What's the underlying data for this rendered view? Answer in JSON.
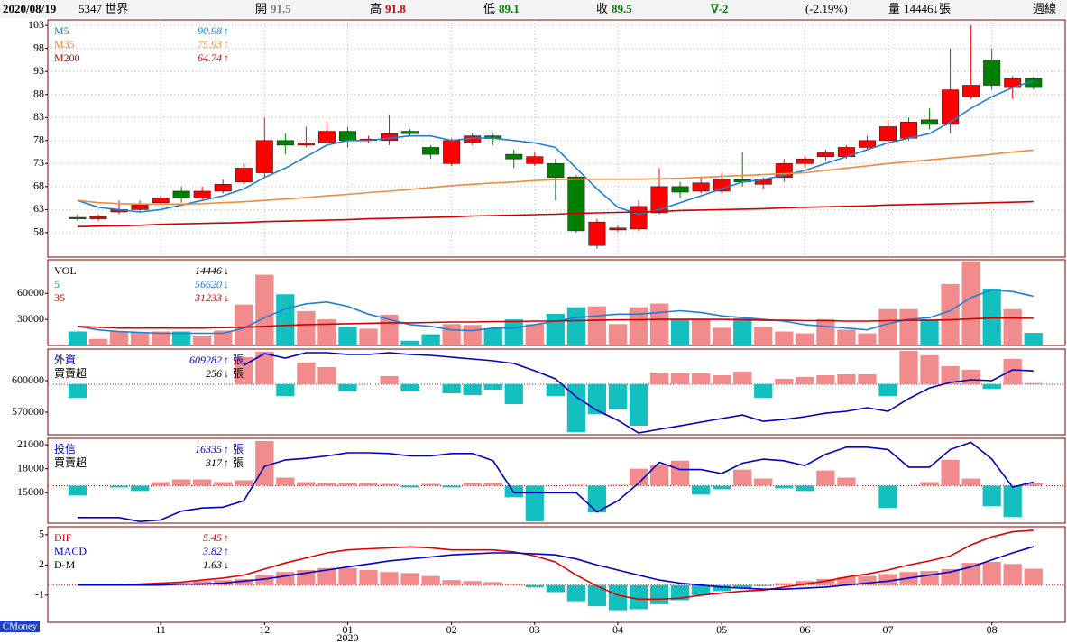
{
  "header": {
    "date": "2020/08/19",
    "stock": "5347 世界",
    "items": [
      {
        "label": "開",
        "value": 91.5,
        "color": "#808080"
      },
      {
        "label": "高",
        "value": 91.8,
        "color": "#e00000"
      },
      {
        "label": "低",
        "value": 89.1,
        "color": "#008000"
      },
      {
        "label": "收",
        "value": 89.5,
        "color": "#008000"
      }
    ],
    "change": "∇-2",
    "change_color": "#008000",
    "change_pct": "(-2.19%)",
    "volume_label": "量",
    "volume": "14446↓張",
    "period": "週線"
  },
  "brand": "CMoney",
  "chart_data": [
    {
      "type": "candlestick",
      "up_color": "#ff0000",
      "down_color": "#008000",
      "grid": true,
      "xlim": [
        -1.43,
        47.53
      ],
      "ylim": [
        52.7,
        104.2
      ],
      "yticks": [
        103,
        98,
        93,
        88,
        83,
        78,
        73,
        68,
        63,
        58
      ],
      "open": [
        61.3,
        61.0,
        62.5,
        63.0,
        64.5,
        67.0,
        65.5,
        67.0,
        69.0,
        71.0,
        78.0,
        77.0,
        77.5,
        80.0,
        78.0,
        78.0,
        80.0,
        76.5,
        73.0,
        77.5,
        79.0,
        75.0,
        73.0,
        73.0,
        70.1,
        55.2,
        58.6,
        58.8,
        62.3,
        68.0,
        67.0,
        67.0,
        69.5,
        68.5,
        70.0,
        73.0,
        74.5,
        74.5,
        76.5,
        78.0,
        78.5,
        82.5,
        81.5,
        87.5,
        95.5,
        89.5,
        91.5
      ],
      "high": [
        62.0,
        62.0,
        65.0,
        65.0,
        66.0,
        68.0,
        68.0,
        69.5,
        73.0,
        83.0,
        79.5,
        81.0,
        82.0,
        81.0,
        79.0,
        83.5,
        80.5,
        77.0,
        78.5,
        79.5,
        79.5,
        76.0,
        75.5,
        74.0,
        70.5,
        61.0,
        59.5,
        65.0,
        72.0,
        69.0,
        70.0,
        71.0,
        75.5,
        70.0,
        74.0,
        75.0,
        76.0,
        77.0,
        79.0,
        82.5,
        83.0,
        85.0,
        98.0,
        103.0,
        98.0,
        92.0,
        91.8
      ],
      "low": [
        60.5,
        60.5,
        62.0,
        62.5,
        64.0,
        64.5,
        65.0,
        66.5,
        68.5,
        70.0,
        75.0,
        76.5,
        77.0,
        76.5,
        77.5,
        77.0,
        79.0,
        74.0,
        72.5,
        77.0,
        77.0,
        72.0,
        72.5,
        65.0,
        58.0,
        54.5,
        58.2,
        58.3,
        62.0,
        65.5,
        66.5,
        66.5,
        68.0,
        67.5,
        69.0,
        72.0,
        73.5,
        74.0,
        76.0,
        77.0,
        78.0,
        80.5,
        79.5,
        87.0,
        89.0,
        87.0,
        89.1
      ],
      "close": [
        61.0,
        61.5,
        63.0,
        64.0,
        65.5,
        65.5,
        67.0,
        68.5,
        72.0,
        78.0,
        77.0,
        77.5,
        80.0,
        78.0,
        78.3,
        79.5,
        79.5,
        75.0,
        78.0,
        79.0,
        78.5,
        74.0,
        74.5,
        70.0,
        58.4,
        60.3,
        59.0,
        63.7,
        68.0,
        66.8,
        68.8,
        69.6,
        69.0,
        69.5,
        73.0,
        74.0,
        75.5,
        76.5,
        78.0,
        81.0,
        82.0,
        81.5,
        89.0,
        90.0,
        90.0,
        91.5,
        89.5
      ],
      "series": [
        {
          "name": "M5",
          "kind": "line",
          "color": "#1e7fd8",
          "trend": "↑",
          "values": [
            65,
            63.5,
            63,
            62.5,
            63,
            64,
            65,
            66,
            67.5,
            70,
            72,
            74.5,
            77,
            78,
            78,
            78.5,
            79,
            79,
            78,
            78.5,
            78.5,
            78,
            77.5,
            76.5,
            72,
            67.5,
            63.5,
            62,
            63,
            64.5,
            66,
            67.5,
            69,
            69.5,
            70.5,
            71.5,
            73,
            74.5,
            76,
            77.5,
            78.5,
            79.5,
            82,
            85,
            87.5,
            89.5,
            90.98
          ]
        },
        {
          "name": "M35",
          "kind": "line",
          "color": "#f08a3c",
          "trend": "↑",
          "values": [
            65,
            64.5,
            64.3,
            64.2,
            64.2,
            64.2,
            64.3,
            64.5,
            64.7,
            65,
            65.3,
            65.6,
            66,
            66.3,
            66.7,
            67,
            67.4,
            67.8,
            68.2,
            68.5,
            68.8,
            69,
            69.3,
            69.5,
            69.6,
            69.6,
            69.6,
            69.6,
            69.7,
            69.8,
            70,
            70.2,
            70.4,
            70.6,
            70.8,
            71,
            71.5,
            72,
            72.5,
            73,
            73.4,
            73.8,
            74.2,
            74.6,
            75,
            75.5,
            75.93
          ]
        },
        {
          "name": "M200",
          "kind": "line",
          "color": "#d00000",
          "trend": "↑",
          "values": [
            59.3,
            59.4,
            59.5,
            59.6,
            59.8,
            59.9,
            60,
            60.1,
            60.2,
            60.4,
            60.5,
            60.6,
            60.7,
            60.8,
            61,
            61.1,
            61.2,
            61.3,
            61.4,
            61.6,
            61.7,
            61.8,
            61.9,
            62,
            62.2,
            62.3,
            62.4,
            62.5,
            62.6,
            62.8,
            62.9,
            63,
            63.1,
            63.2,
            63.4,
            63.5,
            63.6,
            63.7,
            63.8,
            64,
            64.1,
            64.2,
            64.3,
            64.4,
            64.5,
            64.6,
            64.74
          ]
        }
      ]
    },
    {
      "type": "bar",
      "xlim": [
        -1.43,
        47.53
      ],
      "ylim": [
        0,
        98600
      ],
      "yticks": [
        60000,
        30000
      ],
      "series": [
        {
          "name": "VOL",
          "kind": "bar",
          "color": "#000000",
          "color_rule": "candle",
          "up_color": "#f28b8b",
          "down_color": "#14bfbf",
          "trend": "↓",
          "values": [
            16100,
            7500,
            16100,
            15000,
            16100,
            16100,
            10700,
            17100,
            47100,
            81400,
            58900,
            39600,
            30000,
            21400,
            19300,
            35400,
            5400,
            12900,
            24600,
            23600,
            19300,
            30000,
            24600,
            36400,
            43900,
            45000,
            24600,
            43900,
            48200,
            30000,
            30000,
            20400,
            31100,
            21400,
            16100,
            13900,
            30000,
            18200,
            13900,
            41800,
            41800,
            30000,
            70700,
            96400,
            65400,
            41800,
            14446
          ]
        },
        {
          "name": "5",
          "kind": "line",
          "color": "#1e7fd8",
          "trend": "↓",
          "values": [
            22000,
            18000,
            16000,
            15000,
            14000,
            14000,
            14000,
            14000,
            20000,
            32000,
            42000,
            48000,
            50000,
            45000,
            36000,
            30000,
            24000,
            22000,
            18000,
            17000,
            20000,
            20000,
            24000,
            28000,
            32000,
            34000,
            36000,
            36000,
            38000,
            40000,
            38000,
            34000,
            32000,
            30000,
            28000,
            24000,
            22000,
            20000,
            18000,
            25000,
            30000,
            32000,
            40000,
            55000,
            64000,
            62000,
            56620
          ]
        },
        {
          "name": "35",
          "kind": "line",
          "color": "#d00000",
          "trend": "↓",
          "values": [
            22000,
            21000,
            20000,
            20000,
            20000,
            20000,
            20000,
            20500,
            21000,
            22000,
            23000,
            24000,
            24500,
            25000,
            25500,
            26000,
            26000,
            26500,
            27000,
            27000,
            27500,
            27500,
            28000,
            28000,
            28500,
            29000,
            29500,
            29500,
            30000,
            30000,
            30000,
            30000,
            29500,
            29000,
            29000,
            28500,
            28500,
            28000,
            28000,
            28500,
            29000,
            29000,
            29500,
            30500,
            31500,
            31500,
            31233
          ]
        }
      ]
    },
    {
      "type": "bar",
      "zero_line": true,
      "xlim": [
        -1.43,
        47.53
      ],
      "ylim": [
        548600,
        630000
      ],
      "yticks": [
        600000,
        570000
      ],
      "y2lim": [
        -11200,
        7800
      ],
      "series": [
        {
          "name": "外資",
          "kind": "line",
          "color": "#0000c0",
          "trend": "↑",
          "unit": "張",
          "values": [
            null,
            null,
            null,
            null,
            null,
            null,
            null,
            null,
            614600,
            625700,
            621400,
            626600,
            626600,
            624900,
            624900,
            626600,
            624900,
            624000,
            622300,
            620600,
            618900,
            616300,
            609400,
            601700,
            584600,
            571700,
            562300,
            550300,
            553700,
            557100,
            560600,
            564000,
            567400,
            561400,
            563100,
            565700,
            569100,
            570900,
            574300,
            570900,
            582900,
            593100,
            598300,
            600900,
            600000,
            610300,
            609282
          ]
        },
        {
          "name": "買賣超",
          "kind": "bar",
          "axis": "y2",
          "color": "#000000",
          "color_rule": "sign",
          "up_color": "#f28b8b",
          "down_color": "#14bfbf",
          "trend": "↓",
          "unit": "張",
          "values": [
            -3000,
            0,
            0,
            0,
            0,
            0,
            0,
            0,
            6000,
            7200,
            -2600,
            4800,
            3800,
            -1600,
            0,
            1800,
            -1600,
            0,
            -2000,
            -2400,
            -1200,
            -4400,
            0,
            -2600,
            -10600,
            -6600,
            -5600,
            -9200,
            2600,
            2400,
            2400,
            2000,
            2800,
            -3000,
            1200,
            1600,
            2000,
            2200,
            2200,
            -2600,
            7400,
            6400,
            4000,
            3200,
            -1000,
            5600,
            256
          ]
        }
      ]
    },
    {
      "type": "bar",
      "zero_line": true,
      "xlim": [
        -1.43,
        47.53
      ],
      "ylim": [
        11200,
        21800
      ],
      "yticks": [
        21000,
        18000,
        15000
      ],
      "y2lim": [
        -4200,
        5300
      ],
      "series": [
        {
          "name": "投信",
          "kind": "line",
          "color": "#0000c0",
          "trend": "↑",
          "unit": "張",
          "values": [
            11900,
            11900,
            11900,
            11400,
            11600,
            12700,
            13100,
            13200,
            14000,
            18300,
            19100,
            19300,
            19600,
            20000,
            20000,
            19900,
            19600,
            19600,
            19900,
            19900,
            19000,
            15000,
            15000,
            15000,
            15000,
            12600,
            14000,
            16200,
            18800,
            17900,
            17900,
            17400,
            18700,
            19200,
            19000,
            18400,
            19800,
            20700,
            20700,
            20400,
            18200,
            18200,
            20400,
            21300,
            19200,
            15700,
            16335
          ]
        },
        {
          "name": "買賣超",
          "kind": "bar",
          "axis": "y2",
          "color": "#000000",
          "color_rule": "sign",
          "up_color": "#f28b8b",
          "down_color": "#14bfbf",
          "trend": "↑",
          "unit": "張",
          "values": [
            -1100,
            0,
            -200,
            -600,
            400,
            700,
            700,
            400,
            600,
            5000,
            900,
            400,
            300,
            300,
            300,
            200,
            -200,
            200,
            -200,
            300,
            300,
            -1300,
            -4000,
            0,
            100,
            -3000,
            100,
            1900,
            2300,
            2800,
            -1000,
            -400,
            1800,
            800,
            -300,
            -600,
            1700,
            900,
            0,
            -2500,
            0,
            400,
            2900,
            800,
            -2300,
            -3500,
            317
          ]
        }
      ]
    },
    {
      "type": "bar",
      "zero_line": true,
      "xlim": [
        -1.43,
        47.53
      ],
      "ylim": [
        -3.7,
        5.8
      ],
      "yticks": [
        5,
        2,
        -1
      ],
      "xticks": [
        {
          "value": 4,
          "label": "11"
        },
        {
          "value": 9,
          "label": "12"
        },
        {
          "value": 13,
          "label": "01"
        },
        {
          "value": 18,
          "label": "02"
        },
        {
          "value": 22,
          "label": "03"
        },
        {
          "value": 26,
          "label": "04"
        },
        {
          "value": 31,
          "label": "05"
        },
        {
          "value": 35,
          "label": "06"
        },
        {
          "value": 39,
          "label": "07"
        },
        {
          "value": 44,
          "label": "08"
        }
      ],
      "xsublabels": [
        {
          "value": 13,
          "label": "2020"
        }
      ],
      "series": [
        {
          "name": "DIF",
          "kind": "line",
          "color": "#e00000",
          "trend": "↑",
          "values": [
            0,
            0,
            0,
            0.1,
            0.2,
            0.3,
            0.5,
            0.7,
            1.0,
            1.6,
            2.2,
            2.7,
            3.2,
            3.5,
            3.6,
            3.7,
            3.8,
            3.7,
            3.5,
            3.5,
            3.5,
            3.3,
            2.9,
            2.3,
            1.0,
            -0.1,
            -1.0,
            -1.4,
            -1.4,
            -1.3,
            -1.0,
            -0.8,
            -0.6,
            -0.5,
            -0.2,
            0.1,
            0.4,
            0.8,
            1.1,
            1.5,
            2.0,
            2.4,
            2.9,
            4.0,
            4.8,
            5.3,
            5.45
          ]
        },
        {
          "name": "MACD",
          "kind": "line",
          "color": "#0000d0",
          "trend": "↑",
          "values": [
            0,
            0,
            0,
            0,
            0,
            0.1,
            0.1,
            0.2,
            0.4,
            0.6,
            0.9,
            1.2,
            1.5,
            1.8,
            2.1,
            2.4,
            2.6,
            2.8,
            3.0,
            3.1,
            3.2,
            3.2,
            3.1,
            3.0,
            2.6,
            2.0,
            1.5,
            1.0,
            0.5,
            0.2,
            0,
            -0.2,
            -0.3,
            -0.4,
            -0.4,
            -0.3,
            -0.2,
            0,
            0.2,
            0.4,
            0.7,
            1.0,
            1.3,
            1.8,
            2.5,
            3.2,
            3.82
          ]
        },
        {
          "name": "D-M",
          "kind": "bar",
          "color": "#000000",
          "color_rule": "sign",
          "up_color": "#f28b8b",
          "down_color": "#14bfbf",
          "trend": "↓",
          "values": [
            0,
            0,
            0,
            0.1,
            0.2,
            0.2,
            0.4,
            0.5,
            0.6,
            1.0,
            1.3,
            1.5,
            1.7,
            1.7,
            1.5,
            1.3,
            1.2,
            0.9,
            0.5,
            0.4,
            0.3,
            0.1,
            -0.2,
            -0.7,
            -1.6,
            -2.1,
            -2.5,
            -2.4,
            -1.9,
            -1.5,
            -1.0,
            -0.6,
            -0.3,
            -0.1,
            0.2,
            0.4,
            0.6,
            0.8,
            0.9,
            1.1,
            1.3,
            1.4,
            1.6,
            2.2,
            2.3,
            2.1,
            1.63
          ]
        }
      ]
    }
  ]
}
